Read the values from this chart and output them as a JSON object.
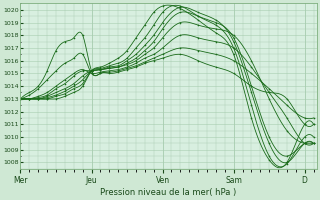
{
  "xlabel": "Pression niveau de la mer( hPa )",
  "bg_color": "#cfe8d4",
  "plot_bg_color": "#d8efe0",
  "grid_color": "#a8cdb0",
  "line_color": "#1a6b1a",
  "ylim": [
    1007.5,
    1020.5
  ],
  "yticks": [
    1008,
    1009,
    1010,
    1011,
    1012,
    1013,
    1014,
    1015,
    1016,
    1017,
    1018,
    1019,
    1020
  ],
  "x_day_labels": [
    "Mer",
    "Jeu",
    "Ven",
    "Sam",
    "D"
  ],
  "x_day_positions": [
    0,
    24,
    48,
    72,
    96
  ],
  "total_hours": 100,
  "curves": [
    {
      "points": [
        [
          0,
          1013.0
        ],
        [
          3,
          1013.5
        ],
        [
          6,
          1014.0
        ],
        [
          9,
          1015.2
        ],
        [
          12,
          1016.8
        ],
        [
          15,
          1017.5
        ],
        [
          18,
          1017.8
        ],
        [
          21,
          1018.0
        ],
        [
          24,
          1015.2
        ],
        [
          27,
          1015.0
        ],
        [
          30,
          1015.0
        ],
        [
          33,
          1015.1
        ],
        [
          36,
          1015.3
        ],
        [
          39,
          1015.5
        ],
        [
          42,
          1015.8
        ],
        [
          45,
          1016.0
        ],
        [
          48,
          1016.2
        ],
        [
          54,
          1016.5
        ],
        [
          60,
          1016.0
        ],
        [
          66,
          1015.5
        ],
        [
          72,
          1015.0
        ],
        [
          78,
          1014.0
        ],
        [
          84,
          1013.5
        ],
        [
          90,
          1013.0
        ],
        [
          96,
          1011.0
        ],
        [
          99,
          1011.0
        ]
      ]
    },
    {
      "points": [
        [
          0,
          1013.0
        ],
        [
          3,
          1013.3
        ],
        [
          6,
          1013.8
        ],
        [
          9,
          1014.5
        ],
        [
          12,
          1015.2
        ],
        [
          15,
          1015.8
        ],
        [
          18,
          1016.2
        ],
        [
          21,
          1016.5
        ],
        [
          24,
          1015.0
        ],
        [
          27,
          1015.0
        ],
        [
          30,
          1015.1
        ],
        [
          33,
          1015.2
        ],
        [
          36,
          1015.4
        ],
        [
          39,
          1015.6
        ],
        [
          42,
          1015.9
        ],
        [
          45,
          1016.2
        ],
        [
          48,
          1016.5
        ],
        [
          54,
          1017.0
        ],
        [
          60,
          1016.8
        ],
        [
          66,
          1016.5
        ],
        [
          72,
          1016.0
        ],
        [
          78,
          1015.0
        ],
        [
          84,
          1013.8
        ],
        [
          90,
          1012.5
        ],
        [
          96,
          1011.5
        ],
        [
          99,
          1011.5
        ]
      ]
    },
    {
      "points": [
        [
          0,
          1013.0
        ],
        [
          3,
          1013.0
        ],
        [
          6,
          1013.2
        ],
        [
          9,
          1013.5
        ],
        [
          12,
          1014.0
        ],
        [
          15,
          1014.5
        ],
        [
          18,
          1015.0
        ],
        [
          21,
          1015.3
        ],
        [
          24,
          1015.0
        ],
        [
          27,
          1015.1
        ],
        [
          30,
          1015.2
        ],
        [
          33,
          1015.3
        ],
        [
          36,
          1015.5
        ],
        [
          39,
          1015.8
        ],
        [
          42,
          1016.2
        ],
        [
          45,
          1016.5
        ],
        [
          48,
          1017.0
        ],
        [
          54,
          1018.0
        ],
        [
          60,
          1017.8
        ],
        [
          66,
          1017.5
        ],
        [
          72,
          1017.0
        ],
        [
          78,
          1015.5
        ],
        [
          84,
          1013.5
        ],
        [
          90,
          1011.5
        ],
        [
          96,
          1009.5
        ],
        [
          99,
          1009.5
        ]
      ]
    },
    {
      "points": [
        [
          0,
          1013.0
        ],
        [
          3,
          1013.0
        ],
        [
          6,
          1013.1
        ],
        [
          9,
          1013.3
        ],
        [
          12,
          1013.8
        ],
        [
          15,
          1014.2
        ],
        [
          18,
          1014.8
        ],
        [
          21,
          1015.2
        ],
        [
          24,
          1015.2
        ],
        [
          27,
          1015.3
        ],
        [
          30,
          1015.4
        ],
        [
          33,
          1015.5
        ],
        [
          36,
          1015.7
        ],
        [
          39,
          1016.0
        ],
        [
          42,
          1016.5
        ],
        [
          45,
          1017.0
        ],
        [
          48,
          1017.8
        ],
        [
          54,
          1019.0
        ],
        [
          60,
          1018.8
        ],
        [
          66,
          1018.5
        ],
        [
          72,
          1018.0
        ],
        [
          78,
          1016.0
        ],
        [
          84,
          1013.0
        ],
        [
          90,
          1010.5
        ],
        [
          96,
          1009.5
        ],
        [
          99,
          1009.5
        ]
      ]
    },
    {
      "points": [
        [
          0,
          1013.0
        ],
        [
          3,
          1013.0
        ],
        [
          6,
          1013.0
        ],
        [
          9,
          1013.2
        ],
        [
          12,
          1013.5
        ],
        [
          15,
          1013.8
        ],
        [
          18,
          1014.2
        ],
        [
          21,
          1014.8
        ],
        [
          24,
          1015.2
        ],
        [
          27,
          1015.3
        ],
        [
          30,
          1015.4
        ],
        [
          33,
          1015.5
        ],
        [
          36,
          1015.8
        ],
        [
          39,
          1016.2
        ],
        [
          42,
          1016.8
        ],
        [
          45,
          1017.5
        ],
        [
          48,
          1018.5
        ],
        [
          54,
          1019.8
        ],
        [
          60,
          1019.5
        ],
        [
          66,
          1019.0
        ],
        [
          72,
          1017.8
        ],
        [
          78,
          1014.0
        ],
        [
          84,
          1010.0
        ],
        [
          90,
          1008.5
        ],
        [
          96,
          1009.5
        ],
        [
          99,
          1009.5
        ]
      ]
    },
    {
      "points": [
        [
          0,
          1013.0
        ],
        [
          3,
          1013.0
        ],
        [
          6,
          1013.0
        ],
        [
          9,
          1013.1
        ],
        [
          12,
          1013.3
        ],
        [
          15,
          1013.6
        ],
        [
          18,
          1014.0
        ],
        [
          21,
          1014.5
        ],
        [
          24,
          1015.2
        ],
        [
          27,
          1015.3
        ],
        [
          30,
          1015.5
        ],
        [
          33,
          1015.6
        ],
        [
          36,
          1016.0
        ],
        [
          39,
          1016.5
        ],
        [
          42,
          1017.2
        ],
        [
          45,
          1018.0
        ],
        [
          48,
          1019.0
        ],
        [
          54,
          1020.2
        ],
        [
          60,
          1019.8
        ],
        [
          66,
          1019.2
        ],
        [
          72,
          1017.5
        ],
        [
          78,
          1013.5
        ],
        [
          84,
          1009.5
        ],
        [
          90,
          1008.0
        ],
        [
          96,
          1009.5
        ],
        [
          99,
          1009.5
        ]
      ]
    },
    {
      "points": [
        [
          0,
          1013.0
        ],
        [
          3,
          1013.0
        ],
        [
          6,
          1013.0
        ],
        [
          9,
          1013.0
        ],
        [
          12,
          1013.2
        ],
        [
          15,
          1013.4
        ],
        [
          18,
          1013.8
        ],
        [
          21,
          1014.2
        ],
        [
          24,
          1015.2
        ],
        [
          27,
          1015.4
        ],
        [
          30,
          1015.6
        ],
        [
          33,
          1015.8
        ],
        [
          36,
          1016.2
        ],
        [
          39,
          1017.0
        ],
        [
          42,
          1017.8
        ],
        [
          45,
          1018.8
        ],
        [
          48,
          1019.8
        ],
        [
          54,
          1020.3
        ],
        [
          60,
          1019.5
        ],
        [
          66,
          1018.8
        ],
        [
          72,
          1017.0
        ],
        [
          78,
          1012.5
        ],
        [
          84,
          1008.5
        ],
        [
          90,
          1007.9
        ],
        [
          96,
          1010.0
        ],
        [
          99,
          1010.0
        ]
      ]
    },
    {
      "points": [
        [
          0,
          1013.0
        ],
        [
          3,
          1013.0
        ],
        [
          6,
          1013.0
        ],
        [
          9,
          1013.0
        ],
        [
          12,
          1013.0
        ],
        [
          15,
          1013.2
        ],
        [
          18,
          1013.5
        ],
        [
          21,
          1014.0
        ],
        [
          24,
          1015.2
        ],
        [
          27,
          1015.5
        ],
        [
          30,
          1015.8
        ],
        [
          33,
          1016.2
        ],
        [
          36,
          1016.8
        ],
        [
          39,
          1017.8
        ],
        [
          42,
          1018.8
        ],
        [
          45,
          1019.8
        ],
        [
          48,
          1020.3
        ],
        [
          54,
          1020.1
        ],
        [
          60,
          1019.2
        ],
        [
          66,
          1018.2
        ],
        [
          72,
          1016.5
        ],
        [
          78,
          1011.5
        ],
        [
          84,
          1008.2
        ],
        [
          90,
          1008.0
        ],
        [
          96,
          1011.0
        ],
        [
          99,
          1011.0
        ]
      ]
    }
  ]
}
